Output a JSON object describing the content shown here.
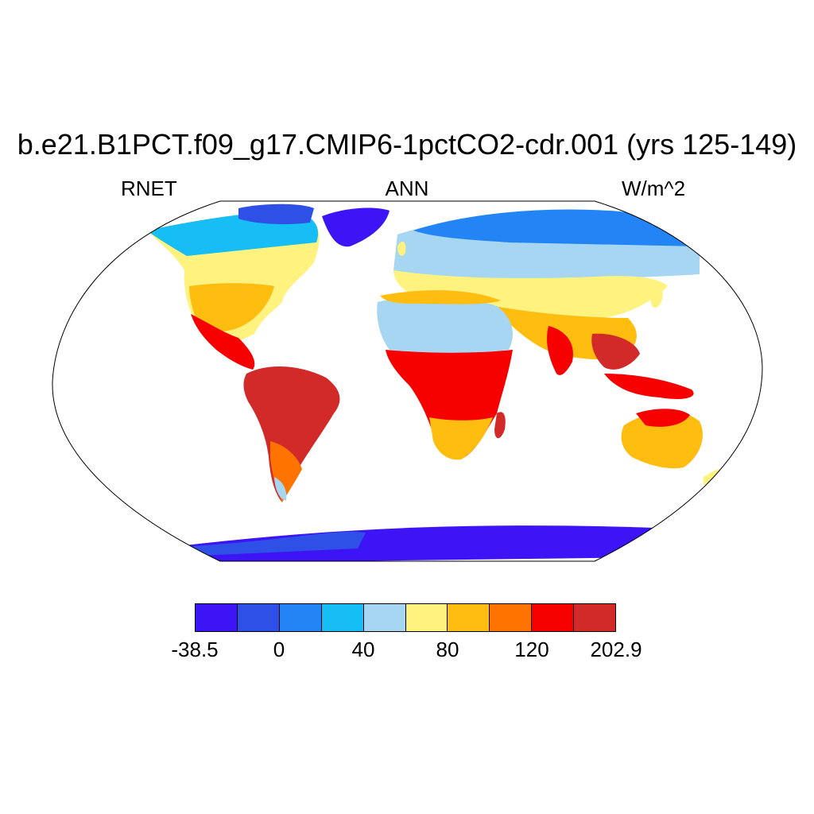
{
  "title": "b.e21.B1PCT.f09_g17.CMIP6-1pctCO2-cdr.001 (yrs 125-149)",
  "left_label": "RNET",
  "center_label": "ANN",
  "right_label": "W/m^2",
  "colorbar": {
    "colors": [
      "#3c14f5",
      "#2f50e6",
      "#2284f5",
      "#17bdf5",
      "#a6d6f2",
      "#fff27f",
      "#ffbd10",
      "#ff7300",
      "#f60000",
      "#d22929"
    ],
    "tick_labels": [
      "-38.5",
      "0",
      "40",
      "80",
      "120",
      "202.9"
    ]
  }
}
